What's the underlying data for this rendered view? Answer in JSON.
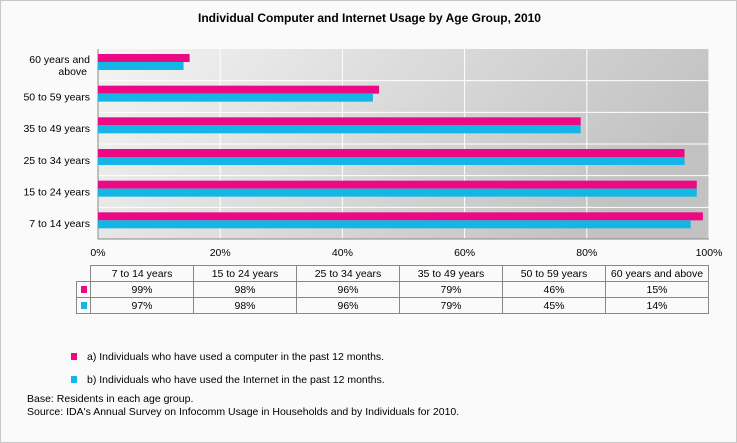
{
  "chart_data": {
    "type": "bar",
    "orientation": "horizontal",
    "title": "Individual Computer and Internet Usage by Age Group, 2010",
    "categories": [
      "7 to 14 years",
      "15 to 24 years",
      "25 to 34 years",
      "35 to 49 years",
      "50 to 59 years",
      "60 years and above"
    ],
    "axis_labels": [
      "7 to 14 years",
      "15 to 24 years",
      "25 to 34 years",
      "35 to 49 years",
      "50 to 59 years",
      "60 years and above"
    ],
    "series": [
      {
        "name": "a) Individuals who have used a computer in the past 12 months.",
        "color": "#ec0a84",
        "values": [
          99,
          98,
          96,
          79,
          46,
          15
        ],
        "labels": [
          "99%",
          "98%",
          "96%",
          "79%",
          "46%",
          "15%"
        ]
      },
      {
        "name": "b) Individuals who have used the Internet in the past 12 months.",
        "color": "#12b7e6",
        "values": [
          97,
          98,
          96,
          79,
          45,
          14
        ],
        "labels": [
          "97%",
          "98%",
          "96%",
          "79%",
          "45%",
          "14%"
        ]
      }
    ],
    "xlim": [
      0,
      100
    ],
    "xticks": [
      "0%",
      "20%",
      "40%",
      "60%",
      "80%",
      "100%"
    ],
    "grid": true,
    "data_table": true
  },
  "footnotes": {
    "base": "Base: Residents in each age group.",
    "source": "Source: IDA's Annual Survey on Infocomm Usage in Households and by Individuals for 2010."
  }
}
